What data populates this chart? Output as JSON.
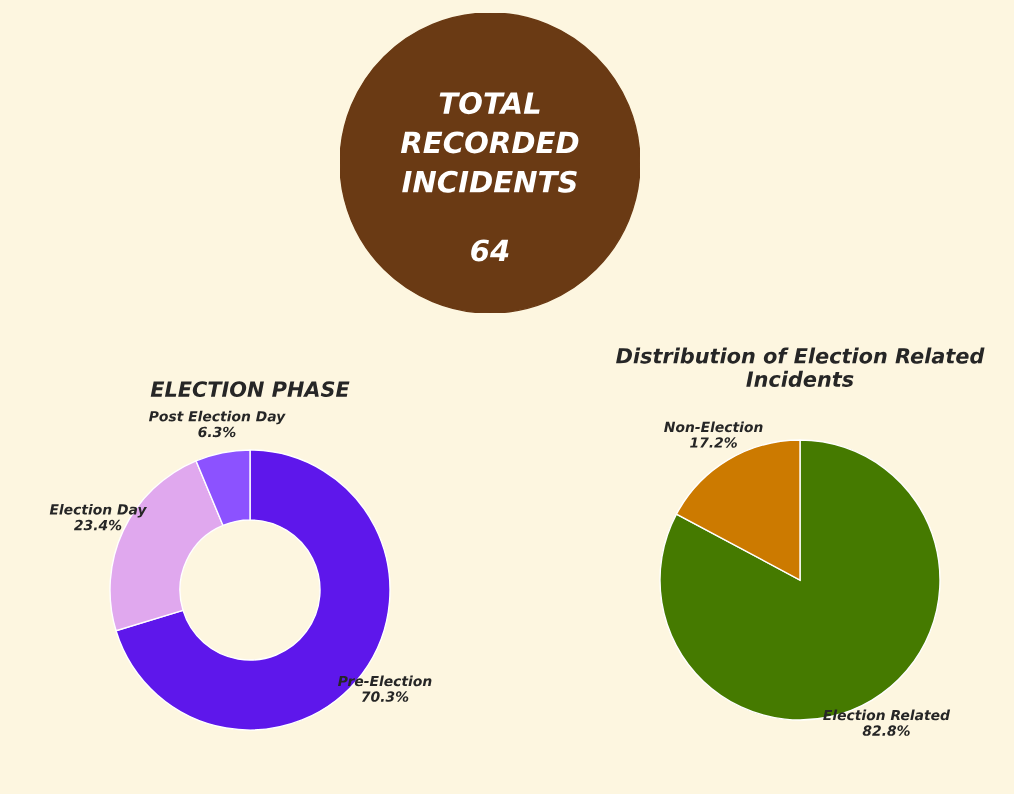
{
  "chart_data": [
    {
      "type": "other",
      "title": "TOTAL RECORDED INCIDENTS",
      "values": [
        64
      ],
      "data_labels": true,
      "color": "#6a3a14"
    },
    {
      "type": "donut",
      "title": "ELECTION PHASE",
      "categories": [
        "Pre-Election",
        "Election Day",
        "Post Election Day"
      ],
      "values": [
        70.3,
        23.4,
        6.3
      ],
      "value_labels": [
        "70.3%",
        "23.4%",
        "6.3%"
      ],
      "colors": [
        "#5e17eb",
        "#e0a8ee",
        "#8c52ff"
      ]
    },
    {
      "type": "pie",
      "title": "Distribution of Election Related Incidents",
      "categories": [
        "Election Related",
        "Non-Election"
      ],
      "values": [
        82.8,
        17.2
      ],
      "value_labels": [
        "82.8%",
        "17.2%"
      ],
      "colors": [
        "#457a00",
        "#cc7a00"
      ]
    }
  ]
}
